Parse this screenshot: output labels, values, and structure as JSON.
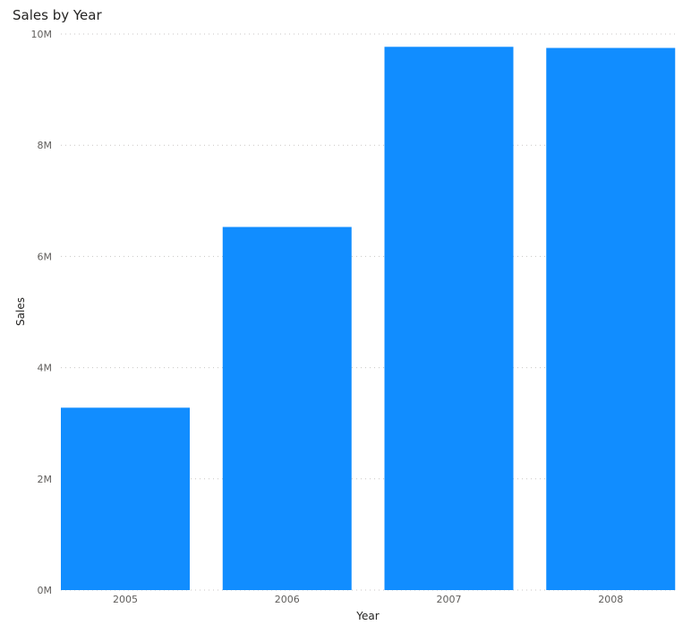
{
  "chart_data": {
    "type": "bar",
    "title": "Sales by Year",
    "xlabel": "Year",
    "ylabel": "Sales",
    "categories": [
      "2005",
      "2006",
      "2007",
      "2008"
    ],
    "values": [
      3280000,
      6530000,
      9770000,
      9750000
    ],
    "ylim": [
      0,
      10000000
    ],
    "yticks": [
      0,
      2000000,
      4000000,
      6000000,
      8000000,
      10000000
    ],
    "ytick_labels": [
      "0M",
      "2M",
      "4M",
      "6M",
      "8M",
      "10M"
    ],
    "grid": "horizontal dotted",
    "legend": "none",
    "bar_color": "#118DFF"
  }
}
